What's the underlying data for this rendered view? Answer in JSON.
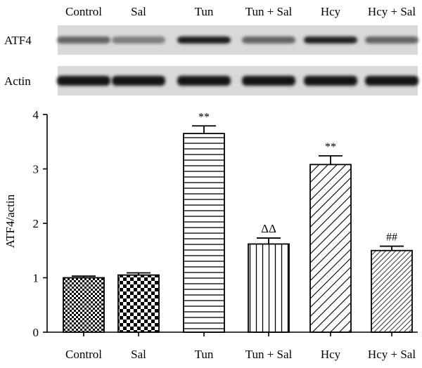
{
  "blot": {
    "lane_labels": [
      "Control",
      "Sal",
      "Tun",
      "Tun + Sal",
      "Hcy",
      "Hcy + Sal"
    ],
    "rows": [
      {
        "label": "ATF4",
        "intensity": [
          0.55,
          0.42,
          0.9,
          0.55,
          0.88,
          0.55
        ]
      },
      {
        "label": "Actin",
        "intensity": [
          0.95,
          0.95,
          0.95,
          0.95,
          0.95,
          0.95
        ]
      }
    ]
  },
  "chart_data": {
    "type": "bar",
    "categories": [
      "Control",
      "Sal",
      "Tun",
      "Tun + Sal",
      "Hcy",
      "Hcy + Sal"
    ],
    "values": [
      1.0,
      1.05,
      3.65,
      1.62,
      3.08,
      1.5
    ],
    "errors": [
      0.03,
      0.04,
      0.14,
      0.11,
      0.16,
      0.08
    ],
    "annotations": [
      "",
      "",
      "**",
      "ΔΔ",
      "**",
      "##"
    ],
    "patterns": [
      "checker-fine",
      "checker-coarse",
      "horizontal-lines",
      "vertical-lines",
      "diagonal-wide",
      "diagonal-dense"
    ],
    "title": "",
    "xlabel": "",
    "ylabel": "ATF4/actin",
    "ylim": [
      0,
      4
    ],
    "yticks": [
      "0",
      "1",
      "2",
      "3",
      "4"
    ],
    "grid": false,
    "colors": {
      "ink": "#000000",
      "fill": "#ffffff",
      "blot_bg": "#d9d9d9"
    }
  }
}
